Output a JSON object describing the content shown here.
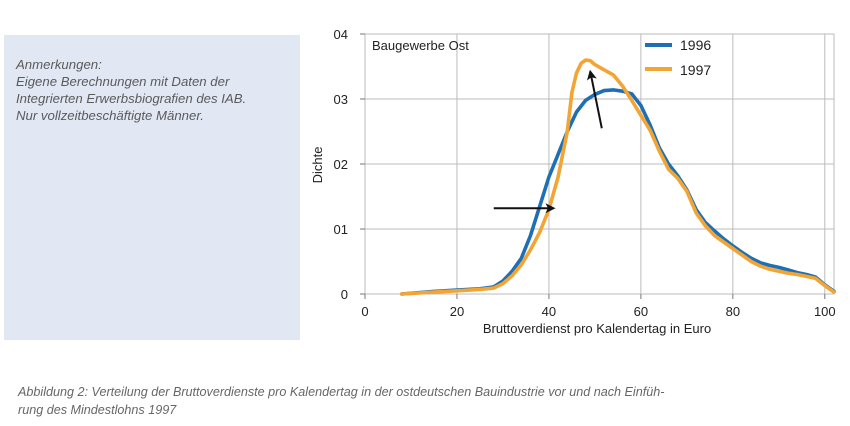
{
  "notes": {
    "lines": [
      "Anmerkungen:",
      "Eigene Berechnungen mit Daten der",
      "Integrierten Erwerbsbiografien des IAB.",
      "Nur vollzeitbeschäftigte Männer."
    ]
  },
  "caption": {
    "lines": [
      "Abbildung 2: Verteilung der Bruttoverdienste pro Kalendertag in der ostdeutschen Bauindustrie vor und nach Einfüh-",
      "rung des Mindestlohns 1997"
    ]
  },
  "chart_data": {
    "type": "line",
    "title": "Baugewerbe Ost",
    "xlabel": "Bruttoverdienst pro Kalendertag in Euro",
    "ylabel": "Dichte",
    "xlim": [
      0,
      102
    ],
    "ylim": [
      0,
      0.04
    ],
    "x_ticks": [
      0,
      20,
      40,
      60,
      80,
      100
    ],
    "x_tick_labels": [
      "0",
      "20",
      "40",
      "60",
      "80",
      "100"
    ],
    "y_ticks": [
      0,
      0.01,
      0.02,
      0.03,
      0.04
    ],
    "y_tick_labels": [
      "0",
      "01",
      "02",
      "03",
      "04"
    ],
    "grid": true,
    "legend_position": "top-right",
    "series": [
      {
        "name": "1996",
        "color": "#1f6fb4",
        "points": [
          [
            8,
            0
          ],
          [
            15,
            0.0004
          ],
          [
            20,
            0.0006
          ],
          [
            25,
            0.0008
          ],
          [
            28,
            0.0011
          ],
          [
            30,
            0.002
          ],
          [
            32,
            0.0035
          ],
          [
            34,
            0.0055
          ],
          [
            36,
            0.009
          ],
          [
            38,
            0.0135
          ],
          [
            40,
            0.018
          ],
          [
            42,
            0.0215
          ],
          [
            44,
            0.025
          ],
          [
            46,
            0.028
          ],
          [
            48,
            0.0298
          ],
          [
            50,
            0.0307
          ],
          [
            52,
            0.0313
          ],
          [
            54,
            0.0314
          ],
          [
            56,
            0.0312
          ],
          [
            58,
            0.0308
          ],
          [
            60,
            0.029
          ],
          [
            62,
            0.026
          ],
          [
            64,
            0.0225
          ],
          [
            66,
            0.02
          ],
          [
            68,
            0.0182
          ],
          [
            70,
            0.016
          ],
          [
            72,
            0.013
          ],
          [
            74,
            0.011
          ],
          [
            76,
            0.0097
          ],
          [
            78,
            0.0085
          ],
          [
            80,
            0.0074
          ],
          [
            82,
            0.0064
          ],
          [
            84,
            0.0055
          ],
          [
            86,
            0.0048
          ],
          [
            88,
            0.0044
          ],
          [
            90,
            0.0041
          ],
          [
            92,
            0.0037
          ],
          [
            94,
            0.0033
          ],
          [
            96,
            0.003
          ],
          [
            98,
            0.0026
          ],
          [
            100,
            0.0014
          ],
          [
            102,
            0.0004
          ]
        ]
      },
      {
        "name": "1997",
        "color": "#f2a535",
        "points": [
          [
            8,
            0
          ],
          [
            15,
            0.0003
          ],
          [
            20,
            0.0005
          ],
          [
            25,
            0.0007
          ],
          [
            28,
            0.0009
          ],
          [
            30,
            0.0016
          ],
          [
            32,
            0.0028
          ],
          [
            34,
            0.0045
          ],
          [
            36,
            0.0068
          ],
          [
            38,
            0.0095
          ],
          [
            40,
            0.013
          ],
          [
            42,
            0.018
          ],
          [
            44,
            0.025
          ],
          [
            45,
            0.031
          ],
          [
            46,
            0.034
          ],
          [
            47,
            0.0355
          ],
          [
            48,
            0.036
          ],
          [
            49,
            0.0359
          ],
          [
            50,
            0.0353
          ],
          [
            52,
            0.0345
          ],
          [
            54,
            0.0337
          ],
          [
            56,
            0.032
          ],
          [
            58,
            0.0298
          ],
          [
            60,
            0.0275
          ],
          [
            62,
            0.0252
          ],
          [
            64,
            0.022
          ],
          [
            66,
            0.0192
          ],
          [
            68,
            0.0178
          ],
          [
            70,
            0.0158
          ],
          [
            72,
            0.0125
          ],
          [
            74,
            0.0105
          ],
          [
            76,
            0.009
          ],
          [
            78,
            0.008
          ],
          [
            80,
            0.007
          ],
          [
            82,
            0.006
          ],
          [
            84,
            0.005
          ],
          [
            86,
            0.0043
          ],
          [
            88,
            0.0038
          ],
          [
            90,
            0.0035
          ],
          [
            92,
            0.0032
          ],
          [
            94,
            0.003
          ],
          [
            96,
            0.0027
          ],
          [
            98,
            0.0024
          ],
          [
            100,
            0.0013
          ],
          [
            102,
            0.0003
          ]
        ]
      }
    ],
    "annotations": [
      {
        "type": "arrow",
        "from": [
          28,
          0.0132
        ],
        "to": [
          41,
          0.0132
        ],
        "color": "#111111"
      },
      {
        "type": "arrow",
        "from": [
          51.5,
          0.0255
        ],
        "to": [
          49,
          0.0342
        ],
        "color": "#111111"
      }
    ]
  }
}
